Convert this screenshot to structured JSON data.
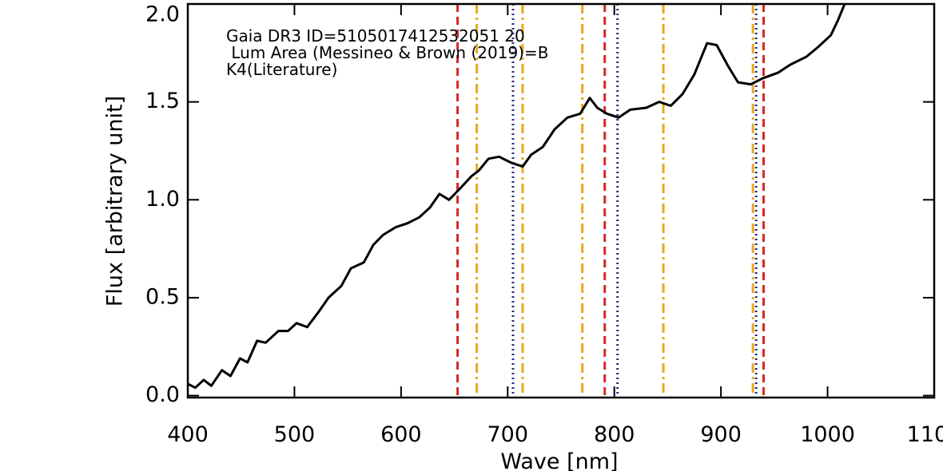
{
  "chart_data": {
    "type": "line",
    "x_label": "Wave [nm]",
    "y_label": "Flux [arbitrary unit]",
    "annotations": [
      "Gaia DR3 ID=5105017412532051 20",
      " Lum Area (Messineo & Brown (2019)=B",
      "K4(Literature)"
    ],
    "xlim": [
      400,
      1100
    ],
    "ylim": [
      -0.01,
      2.0
    ],
    "xticks": [
      400,
      500,
      600,
      700,
      800,
      900,
      1000,
      1100
    ],
    "yticks": [
      {
        "value": 0,
        "label": "0.0"
      },
      0.5,
      {
        "value": 1,
        "label": "1.0"
      },
      1.5,
      {
        "value": 2,
        "label": "2.0"
      }
    ],
    "color": "#000000",
    "x": [
      400,
      407,
      415,
      422,
      432,
      440,
      449,
      456,
      465,
      473,
      485,
      494,
      502,
      512,
      523,
      532,
      544,
      553,
      565,
      574,
      583,
      595,
      606,
      617,
      627,
      636,
      645,
      654,
      666,
      673,
      682,
      692,
      703,
      714,
      722,
      733,
      744,
      756,
      768,
      777,
      784,
      793,
      804,
      815,
      830,
      842,
      853,
      864,
      875,
      887,
      896,
      907,
      916,
      928,
      939,
      954,
      965,
      980,
      991,
      1003,
      1010,
      1016,
      1019
    ],
    "values": [
      0.06,
      0.04,
      0.08,
      0.05,
      0.13,
      0.1,
      0.19,
      0.17,
      0.28,
      0.27,
      0.33,
      0.33,
      0.37,
      0.35,
      0.43,
      0.5,
      0.56,
      0.65,
      0.68,
      0.77,
      0.82,
      0.86,
      0.88,
      0.91,
      0.96,
      1.03,
      1.0,
      1.05,
      1.12,
      1.15,
      1.21,
      1.22,
      1.19,
      1.17,
      1.23,
      1.27,
      1.36,
      1.42,
      1.44,
      1.52,
      1.47,
      1.44,
      1.42,
      1.46,
      1.47,
      1.5,
      1.48,
      1.54,
      1.64,
      1.8,
      1.79,
      1.68,
      1.6,
      1.59,
      1.62,
      1.65,
      1.69,
      1.73,
      1.78,
      1.84,
      1.92,
      2.0,
      2.04
    ],
    "vlines": [
      {
        "x": 653,
        "color": "#d62728",
        "style": "dashed"
      },
      {
        "x": 791,
        "color": "#d62728",
        "style": "dashed"
      },
      {
        "x": 940,
        "color": "#d62728",
        "style": "dashed"
      },
      {
        "x": 671,
        "color": "#e8a820",
        "style": "dashdot"
      },
      {
        "x": 714,
        "color": "#e8a820",
        "style": "dashdot"
      },
      {
        "x": 770,
        "color": "#e8a820",
        "style": "dashdot"
      },
      {
        "x": 846,
        "color": "#e8a820",
        "style": "dashdot"
      },
      {
        "x": 930,
        "color": "#e8a820",
        "style": "dashdot"
      },
      {
        "x": 705,
        "color": "#2a2a8a",
        "style": "dotted"
      },
      {
        "x": 803,
        "color": "#2a2a8a",
        "style": "dotted"
      },
      {
        "x": 933,
        "color": "#2a2a8a",
        "style": "dotted"
      }
    ]
  }
}
